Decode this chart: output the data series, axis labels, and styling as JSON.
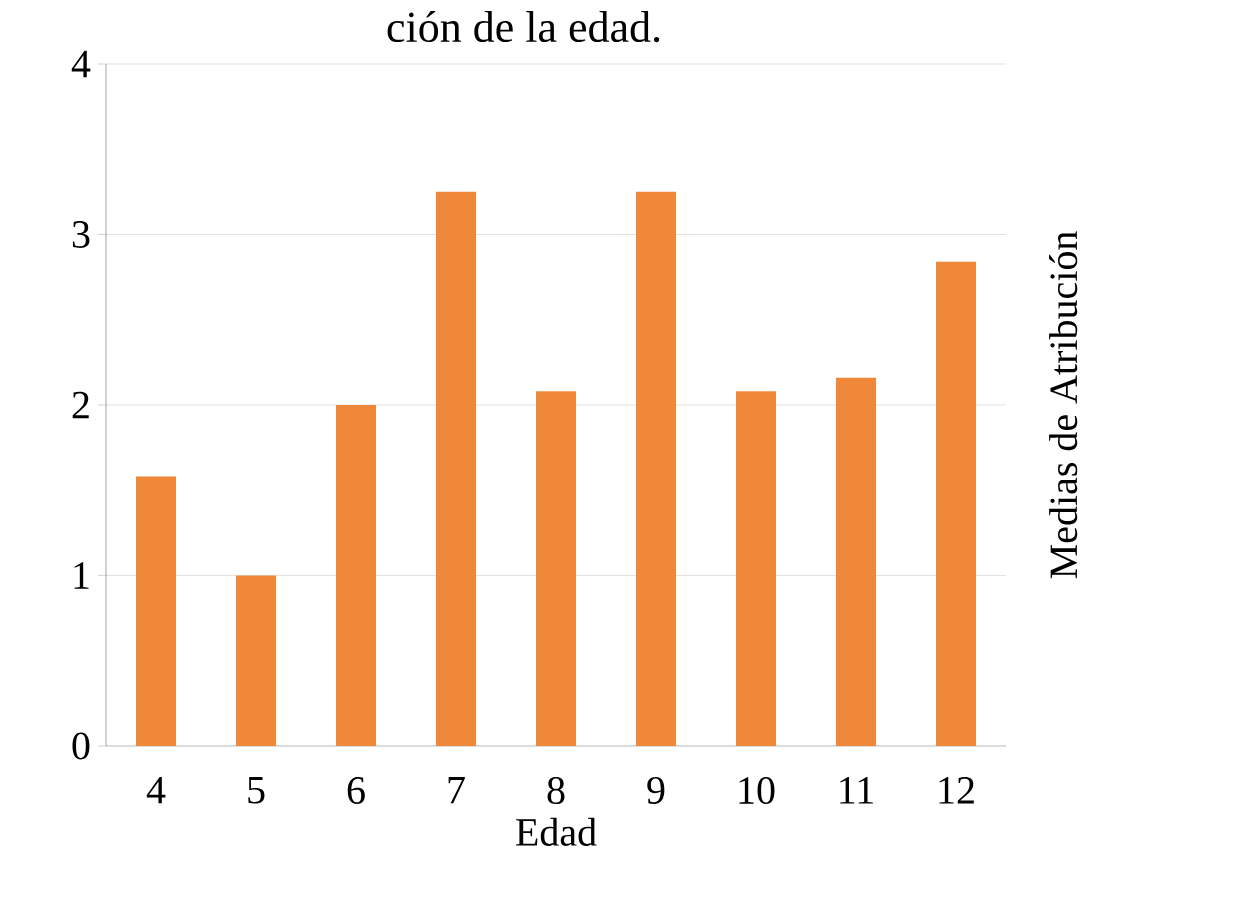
{
  "chart_data": {
    "type": "bar",
    "title": "ción de la edad.",
    "xlabel": "Edad",
    "ylabel": "Medias de Atribución",
    "categories": [
      "4",
      "5",
      "6",
      "7",
      "8",
      "9",
      "10",
      "11",
      "12"
    ],
    "values": [
      1.58,
      1.0,
      2.0,
      3.25,
      2.08,
      3.25,
      2.08,
      2.16,
      2.84
    ],
    "color": "#f0883a",
    "ylim": [
      0,
      4
    ],
    "yticks": [
      0,
      1,
      2,
      3,
      4
    ],
    "grid": "y"
  }
}
